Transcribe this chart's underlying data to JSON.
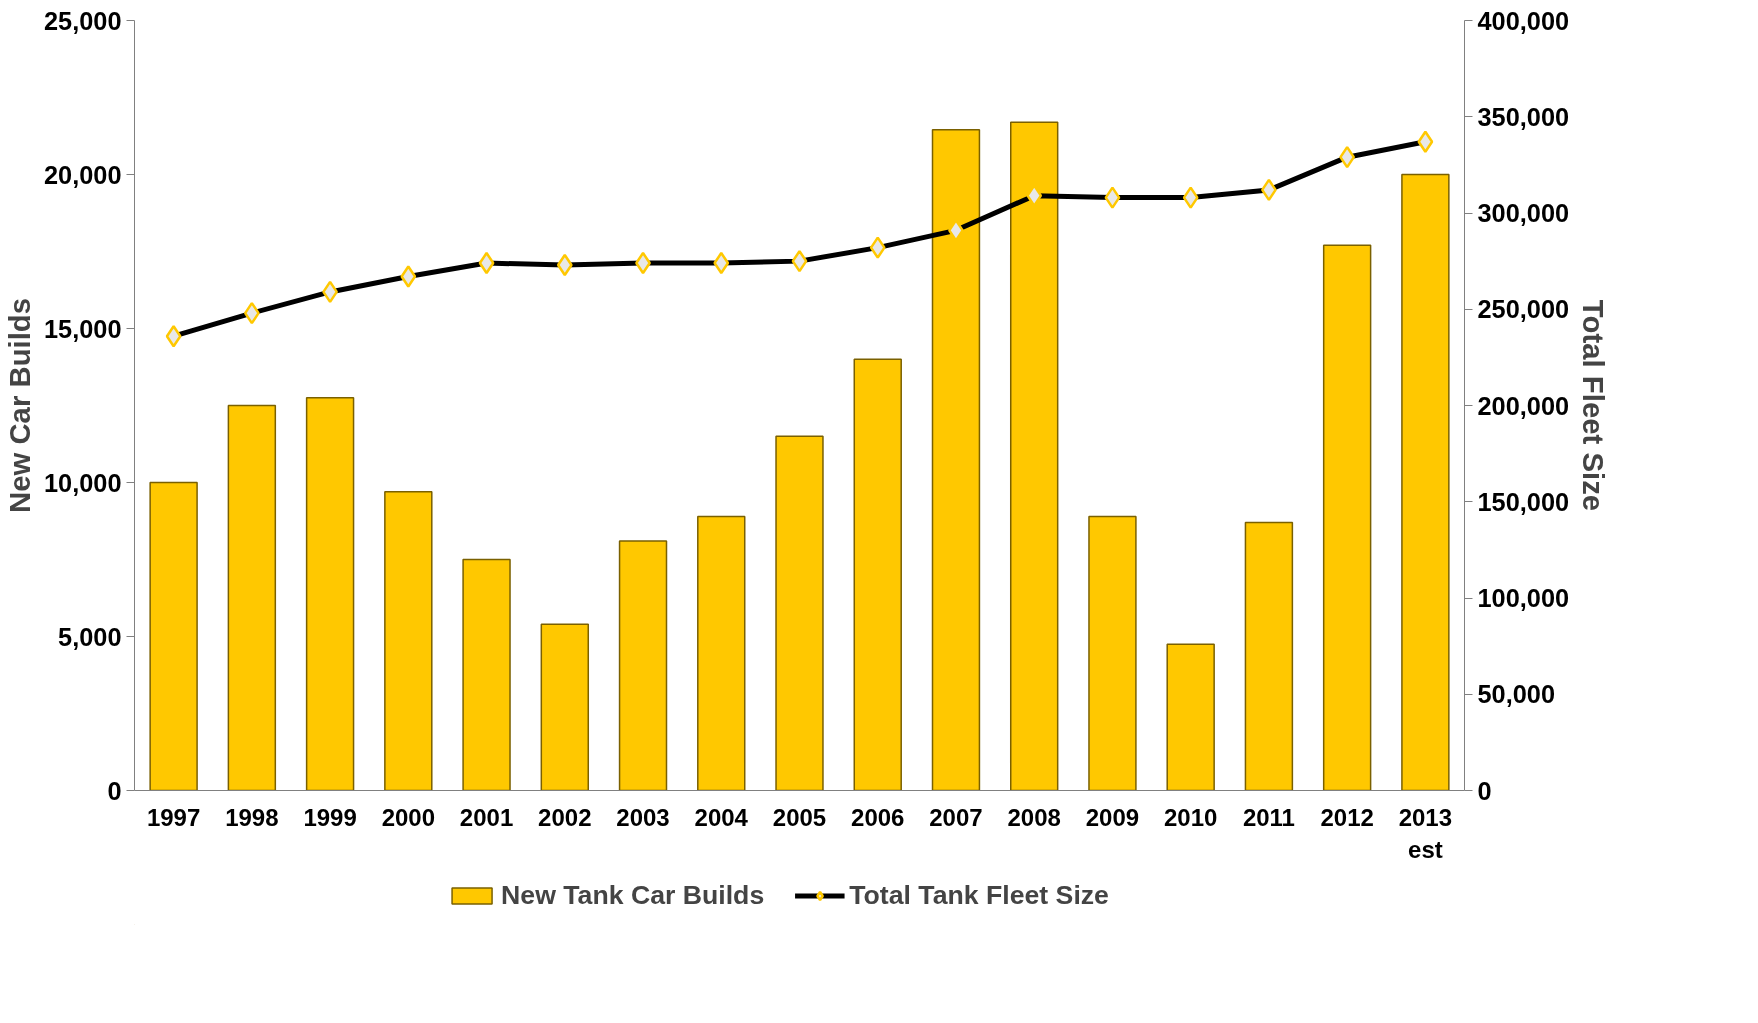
{
  "chart_data": {
    "type": "bar",
    "ylabel": "New Car Builds",
    "y2label": "Total Fleet Size",
    "categories": [
      "1997",
      "1998",
      "1999",
      "2000",
      "2001",
      "2002",
      "2003",
      "2004",
      "2005",
      "2006",
      "2007",
      "2008",
      "2009",
      "2010",
      "2011",
      "2012",
      "2013\nest"
    ],
    "series": [
      {
        "name": "New Tank Car Builds",
        "color": "#ffc800",
        "values": [
          10000,
          12500,
          12750,
          9700,
          7500,
          5400,
          8100,
          8900,
          11500,
          14000,
          21450,
          21700,
          8900,
          4750,
          8700,
          17700,
          20000
        ]
      },
      {
        "name": "Total Tank Fleet Size",
        "type": "line",
        "axis": "y2",
        "color": "#000000",
        "marker": "diamond",
        "values": [
          236000,
          248000,
          259000,
          267000,
          274000,
          273000,
          274000,
          274000,
          275000,
          282000,
          291000,
          309000,
          308000,
          308000,
          312000,
          329000,
          337000
        ]
      }
    ],
    "ylim": [
      0,
      25000
    ],
    "yticks": [
      {
        "value": 0,
        "label": "0"
      },
      {
        "value": 5000,
        "label": "5,000"
      },
      {
        "value": 10000,
        "label": "10,000"
      },
      {
        "value": 15000,
        "label": "15,000"
      },
      {
        "value": 20000,
        "label": "20,000"
      },
      {
        "value": 25000,
        "label": "25,000"
      }
    ],
    "y2lim": [
      0,
      400000
    ],
    "y2ticks": [
      {
        "value": 0,
        "label": "0"
      },
      {
        "value": 50000,
        "label": "50,000"
      },
      {
        "value": 100000,
        "label": "100,000"
      },
      {
        "value": 150000,
        "label": "150,000"
      },
      {
        "value": 200000,
        "label": "200,000"
      },
      {
        "value": 250000,
        "label": "250,000"
      },
      {
        "value": 300000,
        "label": "300,000"
      },
      {
        "value": 350000,
        "label": "350,000"
      },
      {
        "value": 400000,
        "label": "400,000"
      }
    ],
    "grid": false,
    "legend": "bottom"
  }
}
